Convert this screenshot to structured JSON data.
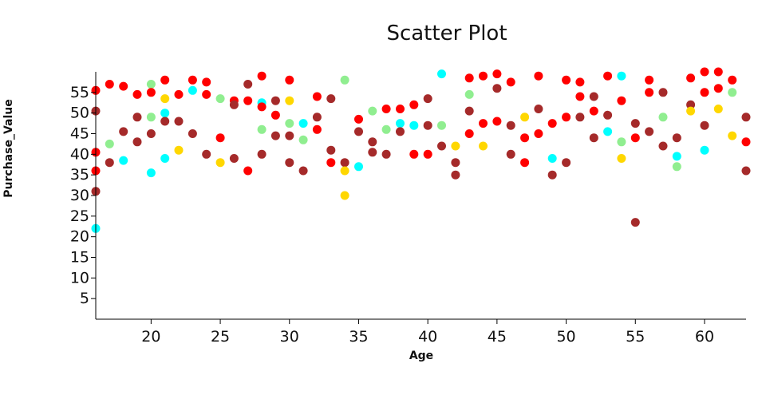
{
  "chart_data": {
    "type": "scatter",
    "title": "Scatter Plot",
    "xlabel": "Age",
    "ylabel": "Purchase_Value",
    "xlim": [
      16,
      63
    ],
    "ylim": [
      0,
      60
    ],
    "x_ticks": [
      20,
      25,
      30,
      35,
      40,
      45,
      50,
      55,
      60
    ],
    "y_ticks": [
      5,
      10,
      15,
      20,
      25,
      30,
      35,
      40,
      45,
      50,
      55
    ],
    "grid": false,
    "legend": "none",
    "palette": [
      "#a52a2a",
      "#ff0000",
      "#ffd700",
      "#00ffff",
      "#90ee90"
    ],
    "points": [
      {
        "x": 16,
        "y": 55.5,
        "c": 1
      },
      {
        "x": 16,
        "y": 50.5,
        "c": 0
      },
      {
        "x": 16,
        "y": 40.5,
        "c": 1
      },
      {
        "x": 16,
        "y": 36,
        "c": 1
      },
      {
        "x": 16,
        "y": 31,
        "c": 0
      },
      {
        "x": 16,
        "y": 22,
        "c": 3
      },
      {
        "x": 17,
        "y": 57,
        "c": 1
      },
      {
        "x": 17,
        "y": 42.5,
        "c": 4
      },
      {
        "x": 17,
        "y": 38,
        "c": 0
      },
      {
        "x": 18,
        "y": 56.5,
        "c": 1
      },
      {
        "x": 18,
        "y": 45.5,
        "c": 0
      },
      {
        "x": 18,
        "y": 38.5,
        "c": 3
      },
      {
        "x": 19,
        "y": 54.5,
        "c": 1
      },
      {
        "x": 19,
        "y": 49,
        "c": 0
      },
      {
        "x": 19,
        "y": 43,
        "c": 0
      },
      {
        "x": 20,
        "y": 57,
        "c": 4
      },
      {
        "x": 20,
        "y": 55,
        "c": 1
      },
      {
        "x": 20,
        "y": 49,
        "c": 4
      },
      {
        "x": 20,
        "y": 45,
        "c": 0
      },
      {
        "x": 20,
        "y": 35.5,
        "c": 3
      },
      {
        "x": 21,
        "y": 58,
        "c": 1
      },
      {
        "x": 21,
        "y": 53.5,
        "c": 2
      },
      {
        "x": 21,
        "y": 50,
        "c": 3
      },
      {
        "x": 21,
        "y": 48,
        "c": 0
      },
      {
        "x": 21,
        "y": 39,
        "c": 3
      },
      {
        "x": 22,
        "y": 54.5,
        "c": 1
      },
      {
        "x": 22,
        "y": 48,
        "c": 0
      },
      {
        "x": 22,
        "y": 41,
        "c": 2
      },
      {
        "x": 23,
        "y": 58,
        "c": 1
      },
      {
        "x": 23,
        "y": 55.5,
        "c": 3
      },
      {
        "x": 23,
        "y": 45,
        "c": 0
      },
      {
        "x": 24,
        "y": 57.5,
        "c": 1
      },
      {
        "x": 24,
        "y": 54.5,
        "c": 1
      },
      {
        "x": 24,
        "y": 40,
        "c": 0
      },
      {
        "x": 25,
        "y": 53.5,
        "c": 4
      },
      {
        "x": 25,
        "y": 44,
        "c": 1
      },
      {
        "x": 25,
        "y": 38,
        "c": 2
      },
      {
        "x": 26,
        "y": 53,
        "c": 1
      },
      {
        "x": 26,
        "y": 52,
        "c": 0
      },
      {
        "x": 26,
        "y": 39,
        "c": 0
      },
      {
        "x": 27,
        "y": 57,
        "c": 0
      },
      {
        "x": 27,
        "y": 53,
        "c": 1
      },
      {
        "x": 27,
        "y": 36,
        "c": 1
      },
      {
        "x": 28,
        "y": 59,
        "c": 1
      },
      {
        "x": 28,
        "y": 52.5,
        "c": 3
      },
      {
        "x": 28,
        "y": 51.5,
        "c": 1
      },
      {
        "x": 28,
        "y": 46,
        "c": 4
      },
      {
        "x": 28,
        "y": 40,
        "c": 0
      },
      {
        "x": 29,
        "y": 53,
        "c": 0
      },
      {
        "x": 29,
        "y": 49.5,
        "c": 1
      },
      {
        "x": 29,
        "y": 44.5,
        "c": 0
      },
      {
        "x": 30,
        "y": 58,
        "c": 1
      },
      {
        "x": 30,
        "y": 53,
        "c": 2
      },
      {
        "x": 30,
        "y": 47.5,
        "c": 4
      },
      {
        "x": 30,
        "y": 44.5,
        "c": 0
      },
      {
        "x": 30,
        "y": 38,
        "c": 0
      },
      {
        "x": 31,
        "y": 47.5,
        "c": 3
      },
      {
        "x": 31,
        "y": 43.5,
        "c": 4
      },
      {
        "x": 31,
        "y": 36,
        "c": 0
      },
      {
        "x": 32,
        "y": 54,
        "c": 1
      },
      {
        "x": 32,
        "y": 49,
        "c": 0
      },
      {
        "x": 32,
        "y": 46,
        "c": 1
      },
      {
        "x": 33,
        "y": 53.5,
        "c": 0
      },
      {
        "x": 33,
        "y": 41,
        "c": 0
      },
      {
        "x": 33,
        "y": 38,
        "c": 1
      },
      {
        "x": 34,
        "y": 58,
        "c": 4
      },
      {
        "x": 34,
        "y": 38,
        "c": 0
      },
      {
        "x": 34,
        "y": 36,
        "c": 2
      },
      {
        "x": 34,
        "y": 30,
        "c": 2
      },
      {
        "x": 35,
        "y": 48.5,
        "c": 1
      },
      {
        "x": 35,
        "y": 45.5,
        "c": 0
      },
      {
        "x": 35,
        "y": 37,
        "c": 3
      },
      {
        "x": 36,
        "y": 50.5,
        "c": 4
      },
      {
        "x": 36,
        "y": 43,
        "c": 0
      },
      {
        "x": 36,
        "y": 40.5,
        "c": 0
      },
      {
        "x": 37,
        "y": 51,
        "c": 1
      },
      {
        "x": 37,
        "y": 46,
        "c": 4
      },
      {
        "x": 37,
        "y": 40,
        "c": 0
      },
      {
        "x": 38,
        "y": 51,
        "c": 1
      },
      {
        "x": 38,
        "y": 47.5,
        "c": 3
      },
      {
        "x": 38,
        "y": 45.5,
        "c": 0
      },
      {
        "x": 39,
        "y": 52,
        "c": 1
      },
      {
        "x": 39,
        "y": 47,
        "c": 3
      },
      {
        "x": 39,
        "y": 40,
        "c": 1
      },
      {
        "x": 40,
        "y": 53.5,
        "c": 0
      },
      {
        "x": 40,
        "y": 47,
        "c": 0
      },
      {
        "x": 40,
        "y": 40,
        "c": 1
      },
      {
        "x": 41,
        "y": 59.5,
        "c": 3
      },
      {
        "x": 41,
        "y": 47,
        "c": 4
      },
      {
        "x": 41,
        "y": 42,
        "c": 0
      },
      {
        "x": 42,
        "y": 42,
        "c": 2
      },
      {
        "x": 42,
        "y": 38,
        "c": 0
      },
      {
        "x": 42,
        "y": 35,
        "c": 0
      },
      {
        "x": 43,
        "y": 58.5,
        "c": 1
      },
      {
        "x": 43,
        "y": 54.5,
        "c": 4
      },
      {
        "x": 43,
        "y": 50.5,
        "c": 0
      },
      {
        "x": 43,
        "y": 45,
        "c": 1
      },
      {
        "x": 44,
        "y": 59,
        "c": 1
      },
      {
        "x": 44,
        "y": 47.5,
        "c": 1
      },
      {
        "x": 44,
        "y": 42,
        "c": 2
      },
      {
        "x": 45,
        "y": 59.5,
        "c": 1
      },
      {
        "x": 45,
        "y": 56,
        "c": 0
      },
      {
        "x": 45,
        "y": 48,
        "c": 1
      },
      {
        "x": 46,
        "y": 57.5,
        "c": 1
      },
      {
        "x": 46,
        "y": 47,
        "c": 0
      },
      {
        "x": 46,
        "y": 40,
        "c": 0
      },
      {
        "x": 47,
        "y": 49,
        "c": 2
      },
      {
        "x": 47,
        "y": 44,
        "c": 1
      },
      {
        "x": 47,
        "y": 38,
        "c": 1
      },
      {
        "x": 48,
        "y": 59,
        "c": 1
      },
      {
        "x": 48,
        "y": 51,
        "c": 0
      },
      {
        "x": 48,
        "y": 45,
        "c": 1
      },
      {
        "x": 49,
        "y": 47.5,
        "c": 1
      },
      {
        "x": 49,
        "y": 39,
        "c": 3
      },
      {
        "x": 49,
        "y": 35,
        "c": 0
      },
      {
        "x": 50,
        "y": 58,
        "c": 1
      },
      {
        "x": 50,
        "y": 49,
        "c": 1
      },
      {
        "x": 50,
        "y": 38,
        "c": 0
      },
      {
        "x": 51,
        "y": 57.5,
        "c": 1
      },
      {
        "x": 51,
        "y": 54,
        "c": 1
      },
      {
        "x": 51,
        "y": 49,
        "c": 0
      },
      {
        "x": 52,
        "y": 54,
        "c": 0
      },
      {
        "x": 52,
        "y": 50.5,
        "c": 1
      },
      {
        "x": 52,
        "y": 44,
        "c": 0
      },
      {
        "x": 53,
        "y": 59,
        "c": 1
      },
      {
        "x": 53,
        "y": 49.5,
        "c": 0
      },
      {
        "x": 53,
        "y": 45.5,
        "c": 3
      },
      {
        "x": 54,
        "y": 59,
        "c": 3
      },
      {
        "x": 54,
        "y": 53,
        "c": 1
      },
      {
        "x": 54,
        "y": 43,
        "c": 4
      },
      {
        "x": 54,
        "y": 39,
        "c": 2
      },
      {
        "x": 55,
        "y": 47.5,
        "c": 0
      },
      {
        "x": 55,
        "y": 44,
        "c": 1
      },
      {
        "x": 55,
        "y": 23.5,
        "c": 0
      },
      {
        "x": 56,
        "y": 58,
        "c": 1
      },
      {
        "x": 56,
        "y": 55,
        "c": 1
      },
      {
        "x": 56,
        "y": 45.5,
        "c": 0
      },
      {
        "x": 57,
        "y": 55,
        "c": 0
      },
      {
        "x": 57,
        "y": 49,
        "c": 4
      },
      {
        "x": 57,
        "y": 42,
        "c": 0
      },
      {
        "x": 58,
        "y": 44,
        "c": 0
      },
      {
        "x": 58,
        "y": 39.5,
        "c": 3
      },
      {
        "x": 58,
        "y": 37,
        "c": 4
      },
      {
        "x": 59,
        "y": 58.5,
        "c": 1
      },
      {
        "x": 59,
        "y": 52,
        "c": 0
      },
      {
        "x": 59,
        "y": 50.5,
        "c": 2
      },
      {
        "x": 60,
        "y": 60,
        "c": 1
      },
      {
        "x": 60,
        "y": 55,
        "c": 1
      },
      {
        "x": 60,
        "y": 47,
        "c": 0
      },
      {
        "x": 60,
        "y": 41,
        "c": 3
      },
      {
        "x": 61,
        "y": 60,
        "c": 1
      },
      {
        "x": 61,
        "y": 56,
        "c": 1
      },
      {
        "x": 61,
        "y": 51,
        "c": 2
      },
      {
        "x": 62,
        "y": 58,
        "c": 1
      },
      {
        "x": 62,
        "y": 55,
        "c": 4
      },
      {
        "x": 62,
        "y": 44.5,
        "c": 2
      },
      {
        "x": 63,
        "y": 49,
        "c": 0
      },
      {
        "x": 63,
        "y": 43,
        "c": 1
      },
      {
        "x": 63,
        "y": 36,
        "c": 0
      }
    ]
  }
}
